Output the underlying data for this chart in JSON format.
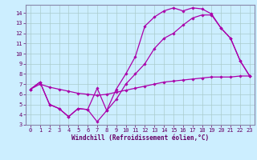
{
  "bg_color": "#cceeff",
  "grid_color": "#aacccc",
  "line_color": "#aa00aa",
  "xlabel": "Windchill (Refroidissement éolien,°C)",
  "xlim": [
    -0.5,
    23.5
  ],
  "ylim": [
    3,
    14.8
  ],
  "xticks": [
    0,
    1,
    2,
    3,
    4,
    5,
    6,
    7,
    8,
    9,
    10,
    11,
    12,
    13,
    14,
    15,
    16,
    17,
    18,
    19,
    20,
    21,
    22,
    23
  ],
  "yticks": [
    3,
    4,
    5,
    6,
    7,
    8,
    9,
    10,
    11,
    12,
    13,
    14
  ],
  "line1_x": [
    0,
    1,
    2,
    3,
    4,
    5,
    6,
    7,
    8,
    9,
    10,
    11,
    12,
    13,
    14,
    15,
    16,
    17,
    18,
    19,
    20,
    21,
    22,
    23
  ],
  "line1_y": [
    6.5,
    7.2,
    5.0,
    4.6,
    3.8,
    4.6,
    4.5,
    3.3,
    4.4,
    6.5,
    8.0,
    9.7,
    12.7,
    13.6,
    14.2,
    14.5,
    14.2,
    14.5,
    14.4,
    13.9,
    12.5,
    11.5,
    9.3,
    7.8
  ],
  "line2_x": [
    0,
    1,
    2,
    3,
    4,
    5,
    6,
    7,
    8,
    9,
    10,
    11,
    12,
    13,
    14,
    15,
    16,
    17,
    18,
    19,
    20,
    21,
    22,
    23
  ],
  "line2_y": [
    6.5,
    7.2,
    5.0,
    4.6,
    3.8,
    4.6,
    4.5,
    6.6,
    4.4,
    5.5,
    7.0,
    8.0,
    9.0,
    10.5,
    11.5,
    12.0,
    12.8,
    13.5,
    13.8,
    13.8,
    12.5,
    11.5,
    9.3,
    7.8
  ],
  "line3_x": [
    0,
    1,
    2,
    3,
    4,
    5,
    6,
    7,
    8,
    9,
    10,
    11,
    12,
    13,
    14,
    15,
    16,
    17,
    18,
    19,
    20,
    21,
    22,
    23
  ],
  "line3_y": [
    6.5,
    7.0,
    6.7,
    6.5,
    6.3,
    6.1,
    6.0,
    5.9,
    6.0,
    6.2,
    6.4,
    6.6,
    6.8,
    7.0,
    7.2,
    7.3,
    7.4,
    7.5,
    7.6,
    7.7,
    7.7,
    7.7,
    7.8,
    7.8
  ],
  "tick_color": "#660066",
  "tick_fontsize": 5,
  "xlabel_fontsize": 5.5
}
